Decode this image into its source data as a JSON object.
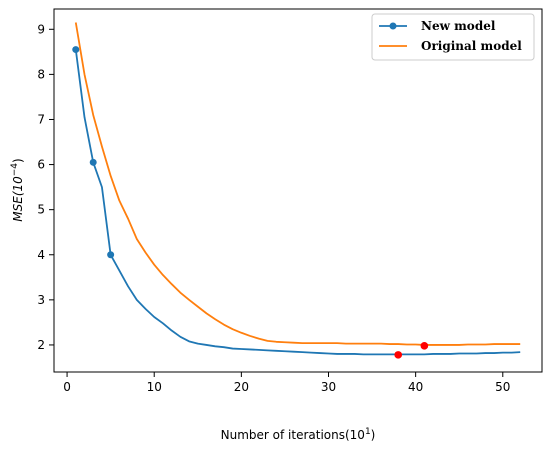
{
  "chart_data": {
    "type": "line",
    "title": "",
    "xlabel": "Number of iterations(10",
    "xlabel_sup": "1",
    "xlabel_suffix": ")",
    "ylabel": "MSE(10",
    "ylabel_sup": "−4",
    "ylabel_suffix": ")",
    "xlim": [
      -1.5,
      54.5
    ],
    "ylim": [
      1.4,
      9.45
    ],
    "xticks": [
      0,
      10,
      20,
      30,
      40,
      50
    ],
    "yticks": [
      2,
      3,
      4,
      5,
      6,
      7,
      8,
      9
    ],
    "grid": false,
    "legend_position": "top-right",
    "series": [
      {
        "name": "New model",
        "color": "#1f77b4",
        "marker_points": [
          1,
          3,
          5
        ],
        "x": [
          1,
          2,
          3,
          4,
          5,
          6,
          7,
          8,
          9,
          10,
          11,
          12,
          13,
          14,
          15,
          16,
          17,
          18,
          19,
          20,
          21,
          22,
          23,
          24,
          25,
          26,
          27,
          28,
          29,
          30,
          31,
          32,
          33,
          34,
          35,
          36,
          37,
          38,
          39,
          40,
          41,
          42,
          43,
          44,
          45,
          46,
          47,
          48,
          49,
          50,
          51,
          52
        ],
        "y": [
          8.55,
          7.05,
          6.05,
          5.5,
          4.0,
          3.65,
          3.3,
          3.0,
          2.8,
          2.62,
          2.48,
          2.32,
          2.18,
          2.08,
          2.03,
          2.0,
          1.97,
          1.95,
          1.92,
          1.91,
          1.9,
          1.89,
          1.88,
          1.87,
          1.86,
          1.85,
          1.84,
          1.83,
          1.82,
          1.81,
          1.8,
          1.8,
          1.8,
          1.79,
          1.79,
          1.79,
          1.79,
          1.79,
          1.79,
          1.79,
          1.79,
          1.8,
          1.8,
          1.8,
          1.81,
          1.81,
          1.81,
          1.82,
          1.82,
          1.83,
          1.83,
          1.84
        ]
      },
      {
        "name": "Original model",
        "color": "#ff7f0e",
        "x": [
          1,
          2,
          3,
          4,
          5,
          6,
          7,
          8,
          9,
          10,
          11,
          12,
          13,
          14,
          15,
          16,
          17,
          18,
          19,
          20,
          21,
          22,
          23,
          24,
          25,
          26,
          27,
          28,
          29,
          30,
          31,
          32,
          33,
          34,
          35,
          36,
          37,
          38,
          39,
          40,
          41,
          42,
          43,
          44,
          45,
          46,
          47,
          48,
          49,
          50,
          51,
          52
        ],
        "y": [
          9.15,
          8.0,
          7.1,
          6.4,
          5.75,
          5.2,
          4.8,
          4.35,
          4.05,
          3.78,
          3.55,
          3.35,
          3.16,
          3.0,
          2.85,
          2.7,
          2.57,
          2.45,
          2.35,
          2.27,
          2.2,
          2.14,
          2.09,
          2.07,
          2.06,
          2.05,
          2.04,
          2.04,
          2.04,
          2.04,
          2.04,
          2.03,
          2.03,
          2.03,
          2.03,
          2.03,
          2.02,
          2.02,
          2.01,
          2.01,
          2.0,
          2.0,
          2.0,
          2.0,
          2.0,
          2.01,
          2.01,
          2.01,
          2.02,
          2.02,
          2.02,
          2.02
        ]
      }
    ],
    "highlight_points": [
      {
        "x": 38,
        "y": 1.78,
        "color": "#ff0000"
      },
      {
        "x": 41,
        "y": 1.98,
        "color": "#ff0000"
      }
    ]
  }
}
